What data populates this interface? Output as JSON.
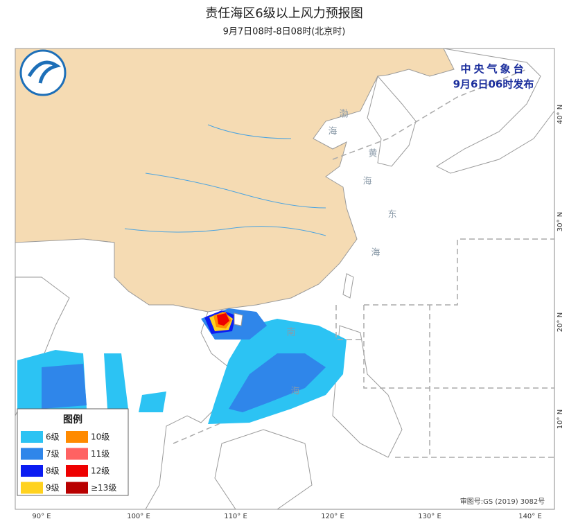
{
  "header": {
    "title": "责任海区6级以上风力预报图",
    "subtitle": "9月7日08时-8日08时(北京时)"
  },
  "issuer": {
    "name": "中央气象台",
    "time": "9月6日06时发布"
  },
  "lon_labels": [
    "90° E",
    "100° E",
    "110° E",
    "120° E",
    "130° E",
    "140° E"
  ],
  "lat_labels": [
    "40° N",
    "30° N",
    "20° N",
    "10° N"
  ],
  "sea_labels": [
    "渤",
    "海",
    "黄",
    "海",
    "东",
    "海",
    "南",
    "海"
  ],
  "legend": {
    "title": "图例",
    "items": [
      {
        "label": "6级",
        "color": "#2cc3f3"
      },
      {
        "label": "7级",
        "color": "#2f86ea"
      },
      {
        "label": "8级",
        "color": "#0b1cf2"
      },
      {
        "label": "9级",
        "color": "#ffd21f"
      },
      {
        "label": "10级",
        "color": "#ff8a00"
      },
      {
        "label": "11级",
        "color": "#ff6262"
      },
      {
        "label": "12级",
        "color": "#ee0000"
      },
      {
        "label": "≥13级",
        "color": "#b80000"
      }
    ]
  },
  "approval": "审图号:GS (2019) 3082号"
}
